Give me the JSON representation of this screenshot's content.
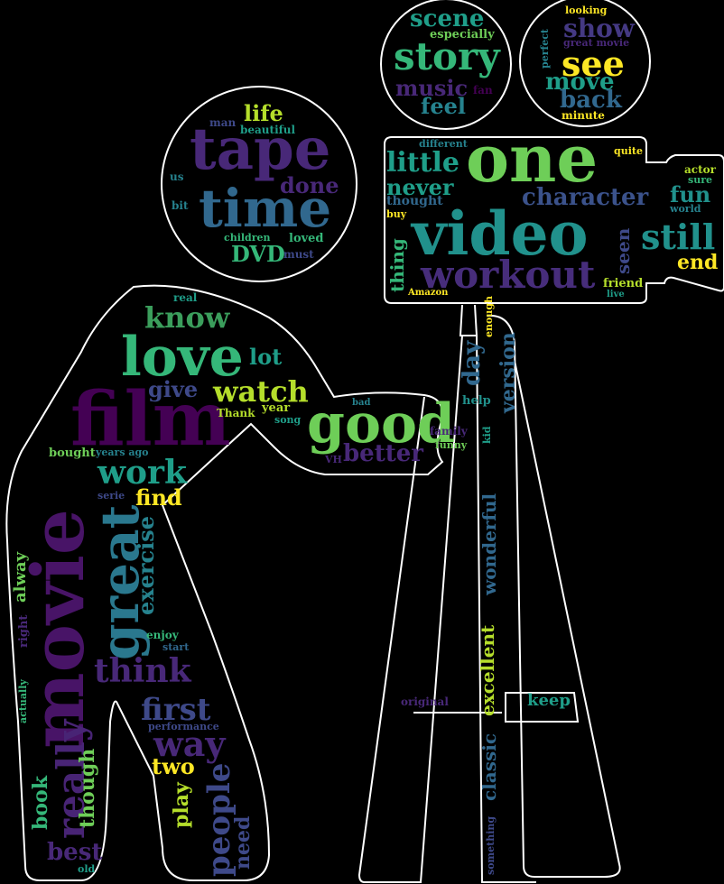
{
  "colors": {
    "background": "#000000",
    "outline": "#ffffff",
    "palette": [
      "#440154",
      "#482878",
      "#3e4989",
      "#31688e",
      "#26828e",
      "#1f9e89",
      "#35b779",
      "#6ece58",
      "#b5de2b",
      "#fde725"
    ]
  },
  "words": [
    {
      "text": "movie",
      "color": "#481467"
    },
    {
      "text": "film",
      "color": "#440154"
    },
    {
      "text": "love",
      "color": "#35b779"
    },
    {
      "text": "great",
      "color": "#2a788e"
    },
    {
      "text": "good",
      "color": "#6ece58"
    },
    {
      "text": "tape",
      "color": "#482878"
    },
    {
      "text": "time",
      "color": "#31688e"
    },
    {
      "text": "one",
      "color": "#6ece58"
    },
    {
      "text": "video",
      "color": "#21918c"
    },
    {
      "text": "workout",
      "color": "#472d7b"
    },
    {
      "text": "really",
      "color": "#482475"
    },
    {
      "text": "story",
      "color": "#35b779"
    },
    {
      "text": "see",
      "color": "#fde725"
    },
    {
      "text": "still",
      "color": "#21918c"
    },
    {
      "text": "know",
      "color": "#3b9e5c"
    },
    {
      "text": "watch",
      "color": "#b5de2b"
    },
    {
      "text": "work",
      "color": "#1f9e89"
    },
    {
      "text": "think",
      "color": "#482878"
    },
    {
      "text": "people",
      "color": "#3e4989"
    },
    {
      "text": "way",
      "color": "#482878"
    },
    {
      "text": "first",
      "color": "#3e4989"
    },
    {
      "text": "little",
      "color": "#1f9e89"
    },
    {
      "text": "character",
      "color": "#3b528b"
    },
    {
      "text": "never",
      "color": "#1f9e89"
    },
    {
      "text": "exercise",
      "color": "#26828e"
    },
    {
      "text": "scene",
      "color": "#1f9e89"
    },
    {
      "text": "show",
      "color": "#443983"
    },
    {
      "text": "move",
      "color": "#1f9e89"
    },
    {
      "text": "back",
      "color": "#31688e"
    },
    {
      "text": "music",
      "color": "#482878"
    },
    {
      "text": "feel",
      "color": "#26828e"
    },
    {
      "text": "life",
      "color": "#b5de2b"
    },
    {
      "text": "done",
      "color": "#482878"
    },
    {
      "text": "DVD",
      "color": "#35b779"
    },
    {
      "text": "fun",
      "color": "#21918c"
    },
    {
      "text": "end",
      "color": "#fde725"
    },
    {
      "text": "day",
      "color": "#31688e"
    },
    {
      "text": "version",
      "color": "#31688e"
    },
    {
      "text": "better",
      "color": "#482878"
    },
    {
      "text": "give",
      "color": "#3e4989"
    },
    {
      "text": "lot",
      "color": "#1f9e89"
    },
    {
      "text": "find",
      "color": "#fde725"
    },
    {
      "text": "two",
      "color": "#fde725"
    },
    {
      "text": "play",
      "color": "#b5de2b"
    },
    {
      "text": "need",
      "color": "#3e4989"
    },
    {
      "text": "book",
      "color": "#35b779"
    },
    {
      "text": "best",
      "color": "#482878"
    },
    {
      "text": "though",
      "color": "#6ece58"
    },
    {
      "text": "wonderful",
      "color": "#31688e"
    },
    {
      "text": "excellent",
      "color": "#b5de2b"
    },
    {
      "text": "classic",
      "color": "#31688e"
    },
    {
      "text": "keep",
      "color": "#1f9e89"
    },
    {
      "text": "seen",
      "color": "#3e4989"
    },
    {
      "text": "thing",
      "color": "#35b779"
    },
    {
      "text": "alway",
      "color": "#6ece58"
    },
    {
      "text": "especially",
      "color": "#6ece58"
    },
    {
      "text": "looking",
      "color": "#fde725"
    },
    {
      "text": "perfect",
      "color": "#26828e"
    },
    {
      "text": "great movie",
      "color": "#482878"
    },
    {
      "text": "fan",
      "color": "#440154"
    },
    {
      "text": "minute",
      "color": "#fde725"
    },
    {
      "text": "man",
      "color": "#3e4989"
    },
    {
      "text": "beautiful",
      "color": "#1f9e89"
    },
    {
      "text": "us",
      "color": "#26828e"
    },
    {
      "text": "bit",
      "color": "#26828e"
    },
    {
      "text": "children",
      "color": "#35b779"
    },
    {
      "text": "loved",
      "color": "#35b779"
    },
    {
      "text": "must",
      "color": "#3e4989"
    },
    {
      "text": "different",
      "color": "#26828e"
    },
    {
      "text": "quite",
      "color": "#fde725"
    },
    {
      "text": "actor",
      "color": "#b5de2b"
    },
    {
      "text": "sure",
      "color": "#35b779"
    },
    {
      "text": "world",
      "color": "#26828e"
    },
    {
      "text": "thought",
      "color": "#31688e"
    },
    {
      "text": "buy",
      "color": "#fde725"
    },
    {
      "text": "friend",
      "color": "#b5de2b"
    },
    {
      "text": "Amazon",
      "color": "#fde725"
    },
    {
      "text": "live",
      "color": "#1f9e89"
    },
    {
      "text": "enough",
      "color": "#fde725"
    },
    {
      "text": "real",
      "color": "#1f9e89"
    },
    {
      "text": "bad",
      "color": "#26828e"
    },
    {
      "text": "Thank",
      "color": "#b5de2b"
    },
    {
      "text": "year",
      "color": "#b5de2b"
    },
    {
      "text": "song",
      "color": "#1f9e89"
    },
    {
      "text": "help",
      "color": "#21918c"
    },
    {
      "text": "family",
      "color": "#482878"
    },
    {
      "text": "funny",
      "color": "#6ece58"
    },
    {
      "text": "kid",
      "color": "#1f9e89"
    },
    {
      "text": "VH",
      "color": "#482878"
    },
    {
      "text": "bought",
      "color": "#6ece58"
    },
    {
      "text": "years ago",
      "color": "#26828e"
    },
    {
      "text": "serie",
      "color": "#3e4989"
    },
    {
      "text": "enjoy",
      "color": "#35b779"
    },
    {
      "text": "start",
      "color": "#31688e"
    },
    {
      "text": "right",
      "color": "#482878"
    },
    {
      "text": "actually",
      "color": "#35b779"
    },
    {
      "text": "performance",
      "color": "#3e4989"
    },
    {
      "text": "old",
      "color": "#1f9e89"
    },
    {
      "text": "original",
      "color": "#482878"
    },
    {
      "text": "something",
      "color": "#3e4989"
    }
  ]
}
